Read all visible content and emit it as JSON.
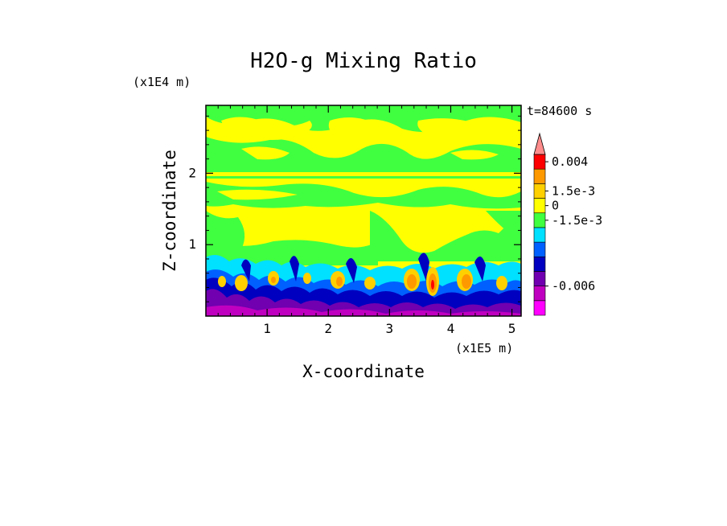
{
  "chart_data": {
    "type": "heatmap",
    "title": "H2O-g Mixing Ratio",
    "time_label": "t=84600 s",
    "xlabel": "X-coordinate",
    "ylabel": "Z-coordinate",
    "x_multiplier": "(x1E5 m)",
    "y_multiplier": "(x1E4 m)",
    "xlim": [
      0,
      5.15
    ],
    "ylim": [
      0,
      2.95
    ],
    "x_ticks": [
      {
        "value": 1,
        "label": "1"
      },
      {
        "value": 2,
        "label": "2"
      },
      {
        "value": 3,
        "label": "3"
      },
      {
        "value": 4,
        "label": "4"
      },
      {
        "value": 5,
        "label": "5"
      }
    ],
    "y_ticks": [
      {
        "value": 1,
        "label": "1"
      },
      {
        "value": 2,
        "label": "2"
      }
    ],
    "colorbar": {
      "levels_color": [
        "#ff00ff",
        "#c000c0",
        "#7000b0",
        "#0000c0",
        "#0060ff",
        "#00e0ff",
        "#40ff40",
        "#ffff00",
        "#ffd000",
        "#ff9900",
        "#ff0000",
        "#ff8c8c"
      ],
      "labels": [
        {
          "level_index": 10.5,
          "text": "0.004"
        },
        {
          "level_index": 8.5,
          "text": "1.5e-3"
        },
        {
          "level_index": 7.5,
          "text": "0"
        },
        {
          "level_index": 6.5,
          "text": "-1.5e-3"
        },
        {
          "level_index": 2,
          "text": "-0.006"
        }
      ]
    }
  }
}
